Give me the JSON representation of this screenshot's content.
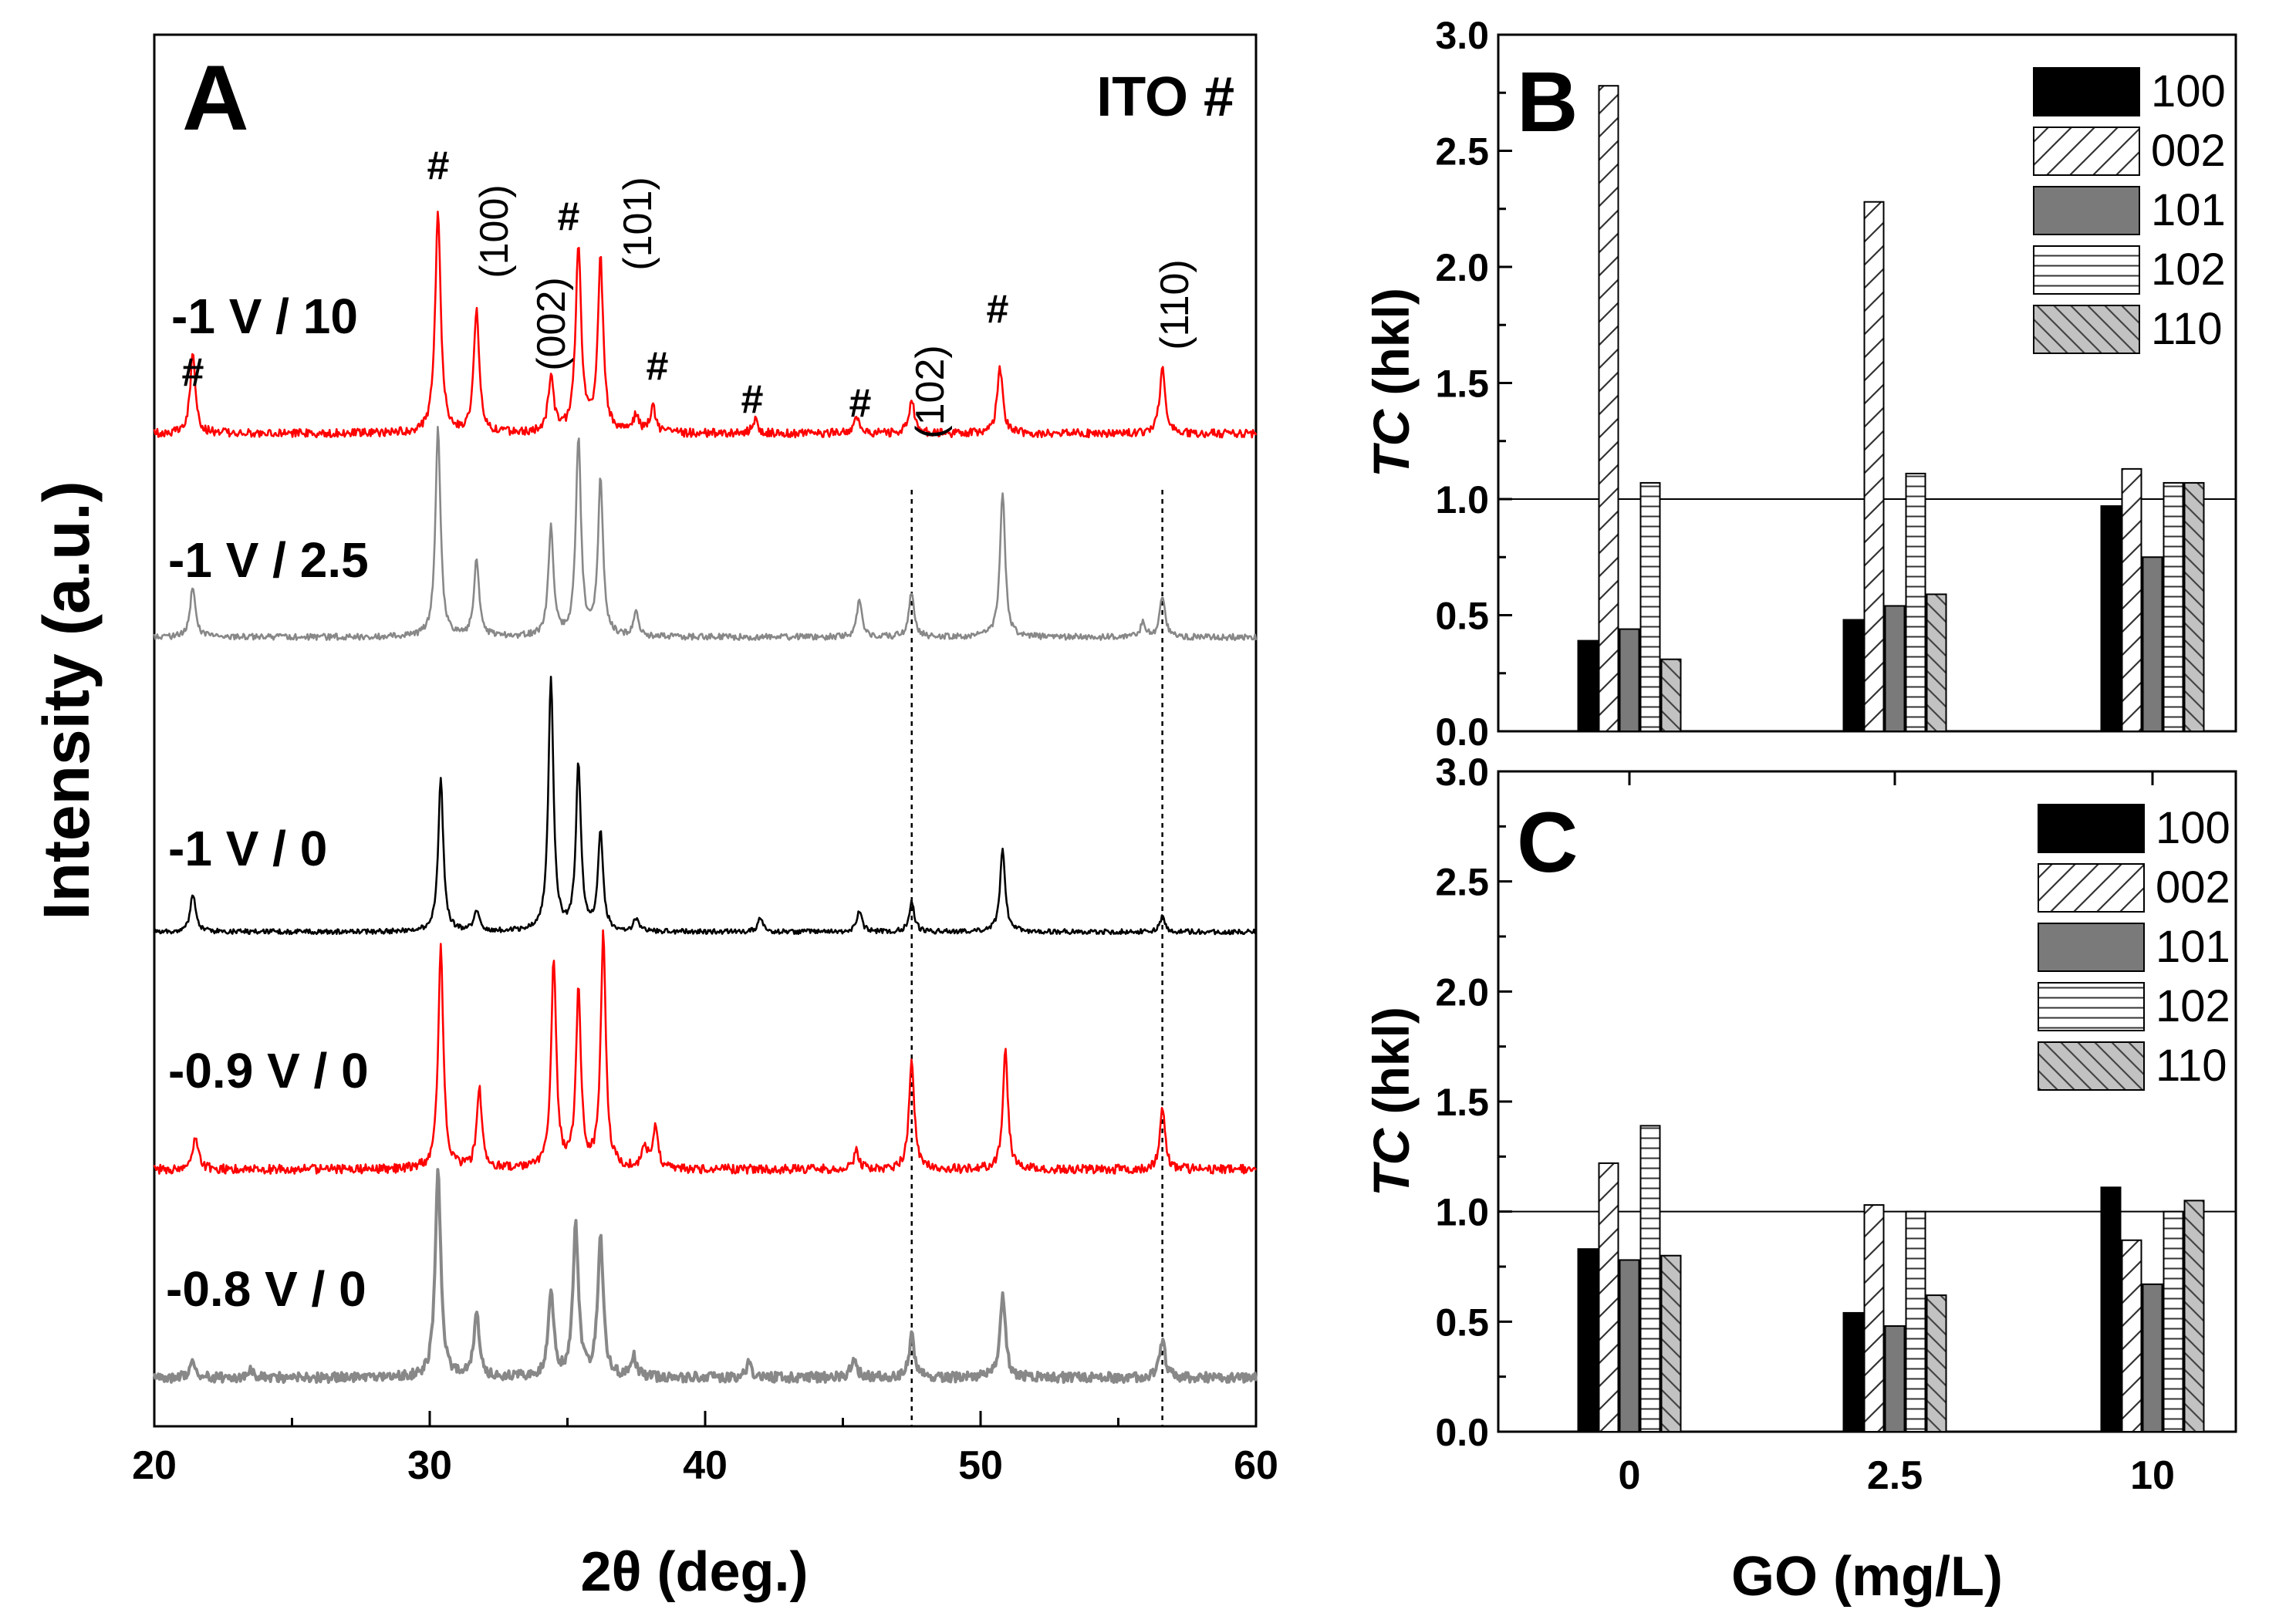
{
  "chart_data": [
    {
      "panel": "A",
      "type": "line",
      "panel_label": "A",
      "corner_label": "ITO #",
      "xlabel": "2θ (deg.)",
      "ylabel": "Intensity (a.u.)",
      "xlim": [
        20,
        60
      ],
      "x_ticks": [
        "20",
        "30",
        "40",
        "50",
        "60"
      ],
      "reference_lines_x": [
        47.5,
        56.6
      ],
      "series": [
        {
          "name": "-1 V / 10",
          "color": "#ff0000",
          "peaks": [
            [
              21.4,
              0.35
            ],
            [
              30.3,
              1.0
            ],
            [
              31.7,
              0.55
            ],
            [
              34.4,
              0.25
            ],
            [
              35.4,
              0.85
            ],
            [
              36.2,
              0.78
            ],
            [
              37.5,
              0.08
            ],
            [
              38.1,
              0.12
            ],
            [
              41.8,
              0.06
            ],
            [
              45.5,
              0.08
            ],
            [
              47.5,
              0.15
            ],
            [
              50.7,
              0.3
            ],
            [
              56.6,
              0.3
            ]
          ]
        },
        {
          "name": "-1 V / 2.5",
          "color": "#888888",
          "peaks": [
            [
              21.4,
              0.25
            ],
            [
              30.3,
              1.0
            ],
            [
              31.7,
              0.38
            ],
            [
              34.4,
              0.52
            ],
            [
              35.4,
              0.95
            ],
            [
              36.2,
              0.75
            ],
            [
              37.5,
              0.12
            ],
            [
              45.6,
              0.18
            ],
            [
              47.5,
              0.22
            ],
            [
              50.8,
              0.7
            ],
            [
              55.9,
              0.07
            ],
            [
              56.6,
              0.2
            ]
          ]
        },
        {
          "name": "-1 V / 0",
          "color": "#000000",
          "peaks": [
            [
              21.4,
              0.15
            ],
            [
              30.4,
              0.6
            ],
            [
              31.7,
              0.08
            ],
            [
              34.4,
              1.0
            ],
            [
              35.4,
              0.65
            ],
            [
              36.2,
              0.38
            ],
            [
              37.5,
              0.05
            ],
            [
              42.0,
              0.05
            ],
            [
              45.6,
              0.08
            ],
            [
              47.5,
              0.12
            ],
            [
              50.8,
              0.33
            ],
            [
              56.6,
              0.06
            ]
          ]
        },
        {
          "name": "-0.9 V / 0",
          "color": "#ff0000",
          "peaks": [
            [
              21.5,
              0.15
            ],
            [
              30.4,
              0.95
            ],
            [
              31.8,
              0.35
            ],
            [
              34.5,
              0.9
            ],
            [
              35.4,
              0.75
            ],
            [
              36.3,
              1.0
            ],
            [
              37.8,
              0.1
            ],
            [
              38.2,
              0.18
            ],
            [
              45.5,
              0.08
            ],
            [
              47.5,
              0.48
            ],
            [
              50.9,
              0.5
            ],
            [
              56.6,
              0.27
            ]
          ]
        },
        {
          "name": "-0.8 V / 0",
          "color": "#888888",
          "peaks": [
            [
              21.4,
              0.08
            ],
            [
              23.5,
              0.04
            ],
            [
              30.3,
              1.0
            ],
            [
              31.7,
              0.3
            ],
            [
              34.4,
              0.4
            ],
            [
              35.3,
              0.72
            ],
            [
              36.2,
              0.66
            ],
            [
              37.4,
              0.1
            ],
            [
              41.6,
              0.07
            ],
            [
              45.4,
              0.1
            ],
            [
              47.5,
              0.2
            ],
            [
              50.8,
              0.4
            ],
            [
              56.6,
              0.18
            ]
          ]
        }
      ],
      "annotations": {
        "hash": "#",
        "hkl": [
          "(100)",
          "(002)",
          "(101)",
          "(102)",
          "(110)"
        ]
      }
    },
    {
      "panel": "B",
      "type": "bar",
      "panel_label": "B",
      "ylabel_italic": "TC",
      "ylabel_rest": " (hkl)",
      "ylim": [
        0,
        3.0
      ],
      "y_ticks": [
        "0.0",
        "0.5",
        "1.0",
        "1.5",
        "2.0",
        "2.5",
        "3.0"
      ],
      "reference_line_y": 1.0,
      "categories": [
        "0",
        "2.5",
        "10"
      ],
      "series": [
        {
          "name": "100",
          "values": [
            0.39,
            0.48,
            0.97
          ]
        },
        {
          "name": "002",
          "values": [
            2.78,
            2.28,
            1.13
          ]
        },
        {
          "name": "101",
          "values": [
            0.44,
            0.54,
            0.75
          ]
        },
        {
          "name": "102",
          "values": [
            1.07,
            1.11,
            1.07
          ]
        },
        {
          "name": "110",
          "values": [
            0.31,
            0.59,
            1.07
          ]
        }
      ]
    },
    {
      "panel": "C",
      "type": "bar",
      "panel_label": "C",
      "ylabel_italic": "TC",
      "ylabel_rest": " (hkl)",
      "xlabel": "GO (mg/L)",
      "ylim": [
        0,
        3.0
      ],
      "y_ticks": [
        "0.0",
        "0.5",
        "1.0",
        "1.5",
        "2.0",
        "2.5",
        "3.0"
      ],
      "reference_line_y": 1.0,
      "categories": [
        "0",
        "2.5",
        "10"
      ],
      "series": [
        {
          "name": "100",
          "values": [
            0.83,
            0.54,
            1.11
          ]
        },
        {
          "name": "002",
          "values": [
            1.22,
            1.03,
            0.87
          ]
        },
        {
          "name": "101",
          "values": [
            0.78,
            0.48,
            0.67
          ]
        },
        {
          "name": "102",
          "values": [
            1.39,
            1.0,
            1.0
          ]
        },
        {
          "name": "110",
          "values": [
            0.8,
            0.62,
            1.05
          ]
        }
      ]
    }
  ]
}
